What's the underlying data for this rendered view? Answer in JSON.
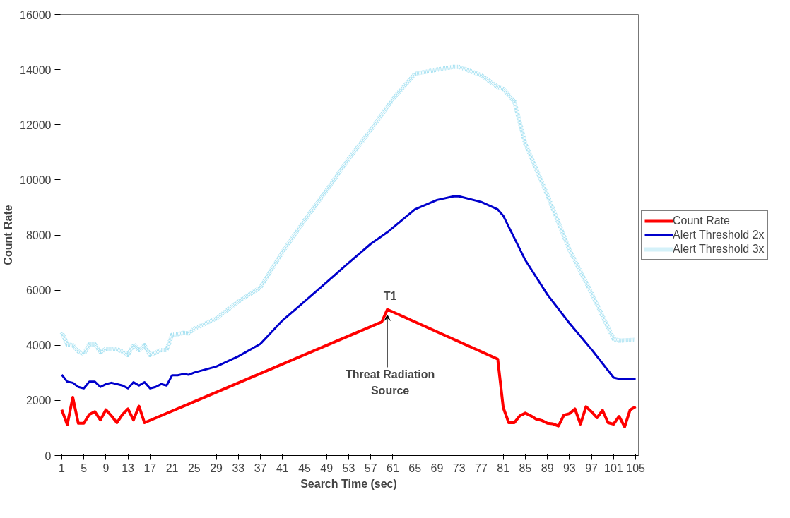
{
  "chart_data": {
    "type": "line",
    "xlabel": "Search Time (sec)",
    "ylabel": "Count Rate",
    "xlim": [
      0.5,
      105.5
    ],
    "xticks": [
      1,
      5,
      9,
      13,
      17,
      21,
      25,
      29,
      33,
      37,
      41,
      45,
      49,
      53,
      57,
      61,
      65,
      69,
      73,
      77,
      81,
      85,
      89,
      93,
      97,
      101,
      105
    ],
    "ylim": [
      0,
      16000
    ],
    "yticks": [
      0,
      2000,
      4000,
      6000,
      8000,
      10000,
      12000,
      14000,
      16000
    ],
    "grid": false,
    "legend": "right",
    "marker": "none",
    "series": [
      {
        "name": "Count Rate",
        "color": "#ff0000",
        "line_style": "solid",
        "x": [
          1,
          2,
          3,
          4,
          5,
          6,
          7,
          8,
          9,
          10,
          11,
          12,
          13,
          14,
          15,
          16,
          59,
          60,
          80,
          81,
          82,
          83,
          84,
          85,
          86,
          87,
          88,
          89,
          90,
          91,
          92,
          93,
          94,
          95,
          96,
          97,
          98,
          99,
          100,
          101,
          102,
          103,
          104,
          105
        ],
        "values": [
          1660,
          1120,
          2110,
          1170,
          1170,
          1490,
          1590,
          1290,
          1660,
          1440,
          1190,
          1490,
          1690,
          1290,
          1790,
          1190,
          4850,
          5300,
          3500,
          1740,
          1190,
          1190,
          1440,
          1540,
          1440,
          1320,
          1270,
          1170,
          1150,
          1070,
          1470,
          1520,
          1690,
          1140,
          1770,
          1590,
          1370,
          1640,
          1190,
          1140,
          1420,
          1040,
          1660,
          1770
        ]
      },
      {
        "name": "Alert Threshold 2x",
        "color": "#0000cc",
        "line_style": "solid",
        "x": [
          1,
          2,
          3,
          4,
          5,
          6,
          7,
          8,
          9,
          10,
          11,
          12,
          13,
          14,
          15,
          16,
          17,
          18,
          19,
          20,
          21,
          22,
          23,
          24,
          25,
          29,
          33,
          37,
          41,
          45,
          49,
          53,
          57,
          60,
          65,
          69,
          72,
          73,
          77,
          80,
          81,
          85,
          89,
          93,
          97,
          101,
          102,
          105
        ],
        "values": [
          2930,
          2680,
          2640,
          2490,
          2440,
          2680,
          2680,
          2490,
          2590,
          2640,
          2590,
          2540,
          2440,
          2660,
          2540,
          2660,
          2440,
          2490,
          2590,
          2540,
          2910,
          2910,
          2960,
          2930,
          3010,
          3230,
          3600,
          4050,
          4900,
          5590,
          6290,
          6990,
          7680,
          8100,
          8930,
          9270,
          9400,
          9400,
          9200,
          8930,
          8700,
          7090,
          5840,
          4800,
          3850,
          2830,
          2780,
          2790
        ]
      },
      {
        "name": "Alert Threshold 3x",
        "color": "#a8e2f2",
        "line_style": "dotted",
        "x": [
          1,
          2,
          3,
          4,
          5,
          6,
          7,
          8,
          9,
          10,
          11,
          12,
          13,
          14,
          15,
          16,
          17,
          18,
          19,
          20,
          21,
          22,
          23,
          24,
          25,
          29,
          33,
          37,
          41,
          45,
          49,
          53,
          57,
          61,
          65,
          69,
          72,
          73,
          77,
          80,
          81,
          83,
          85,
          89,
          93,
          97,
          101,
          102,
          105
        ],
        "values": [
          4470,
          4030,
          4000,
          3780,
          3680,
          4030,
          4030,
          3750,
          3880,
          3880,
          3850,
          3780,
          3650,
          4030,
          3830,
          4000,
          3650,
          3730,
          3830,
          3830,
          4380,
          4400,
          4450,
          4430,
          4600,
          4970,
          5590,
          6100,
          7380,
          8530,
          9620,
          10760,
          11810,
          12930,
          13850,
          14000,
          14100,
          14100,
          13800,
          13370,
          13300,
          12850,
          11310,
          9450,
          7460,
          5890,
          4230,
          4170,
          4200
        ]
      }
    ],
    "annotations": [
      {
        "text": "T1",
        "x": 60,
        "y": 5300
      },
      {
        "text": "Threat Radiation\nSource",
        "x": 60,
        "y": 5300
      }
    ]
  }
}
